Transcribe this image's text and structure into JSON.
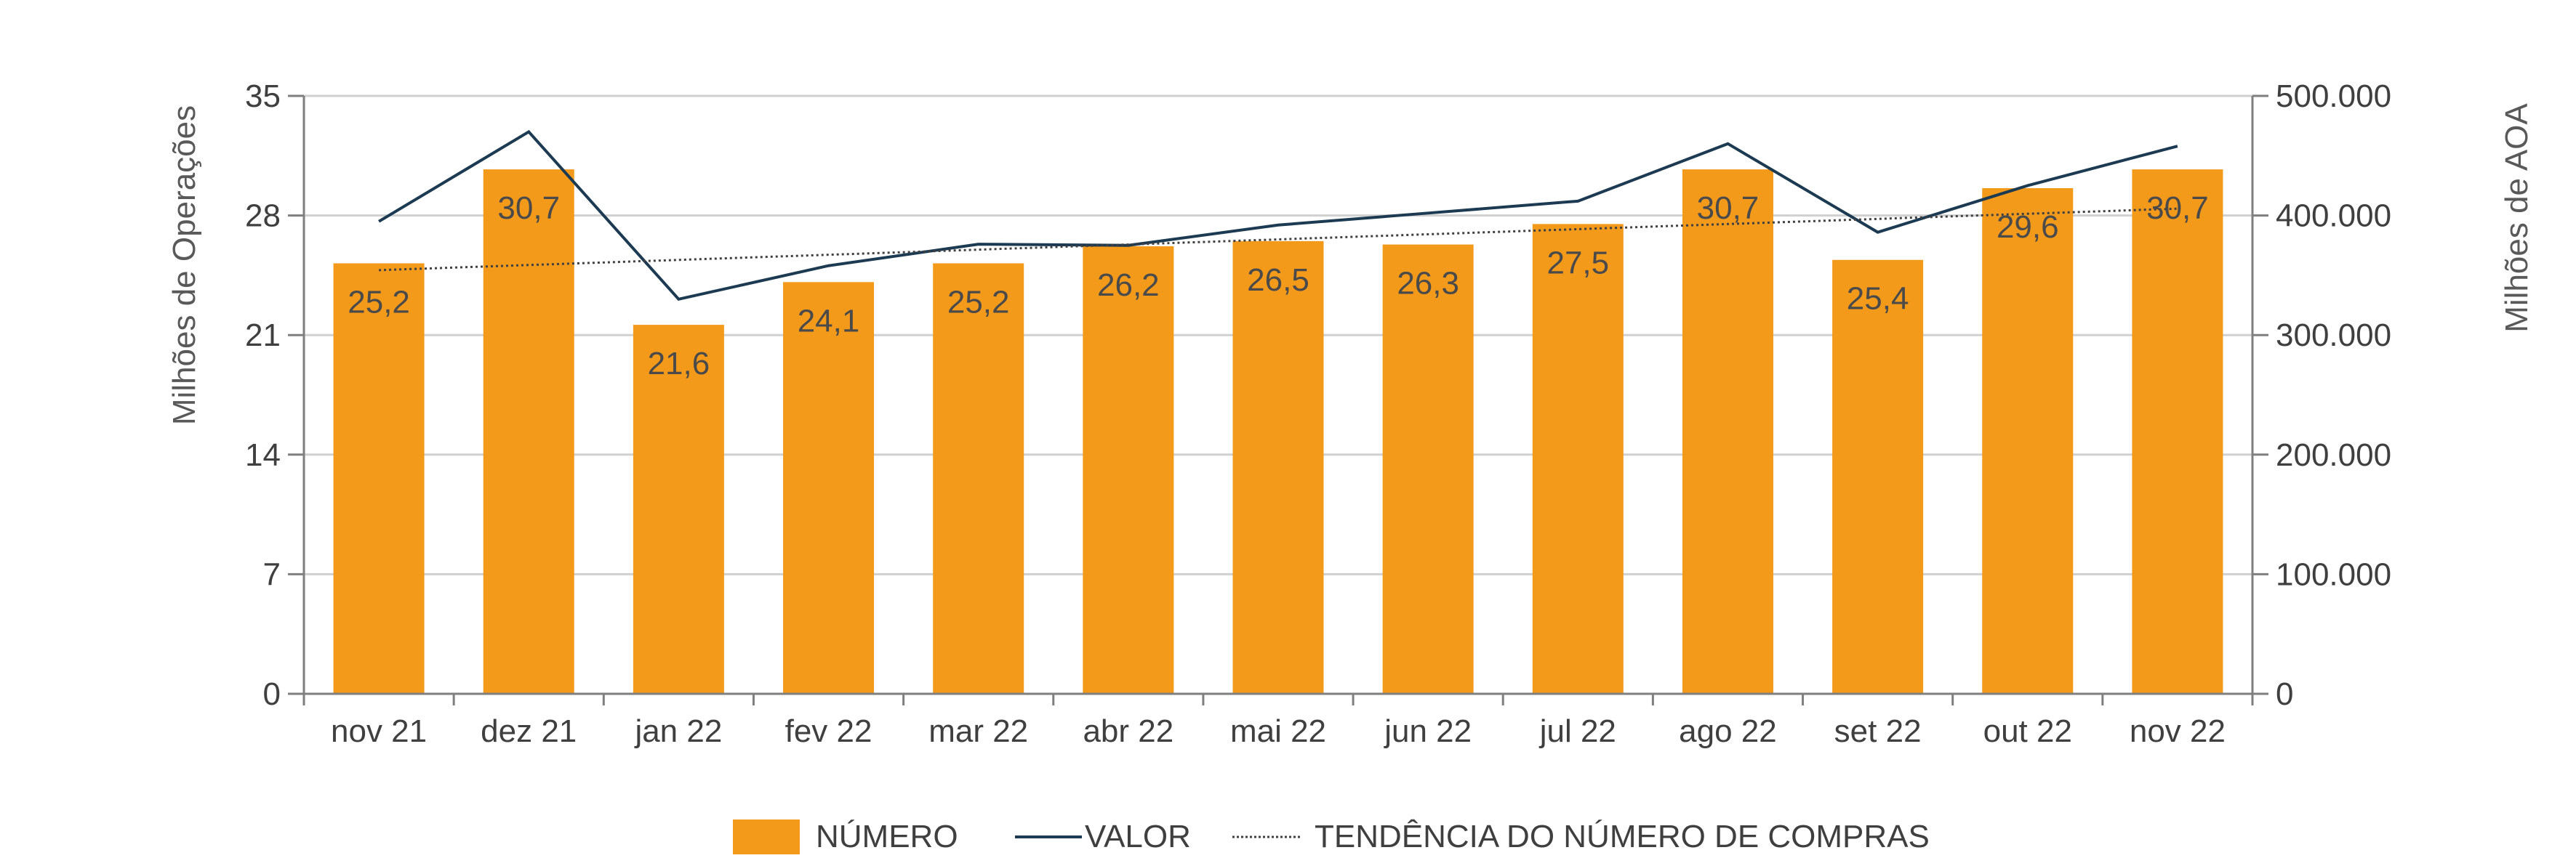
{
  "chart_data": {
    "type": "bar",
    "title": "",
    "categories": [
      "nov 21",
      "dez 21",
      "jan 22",
      "fev 22",
      "mar 22",
      "abr 22",
      "mai 22",
      "jun 22",
      "jul 22",
      "ago 22",
      "set 22",
      "out 22",
      "nov 22"
    ],
    "series": [
      {
        "name": "NÚMERO",
        "type": "bar",
        "axis": "left",
        "values": [
          25.2,
          30.7,
          21.6,
          24.1,
          25.2,
          26.2,
          26.5,
          26.3,
          27.5,
          30.7,
          25.4,
          29.6,
          30.7
        ]
      },
      {
        "name": "VALOR",
        "type": "line",
        "axis": "right",
        "values": [
          395000,
          470000,
          330000,
          358000,
          376000,
          375000,
          392000,
          402000,
          412000,
          460000,
          386000,
          425000,
          458000
        ]
      },
      {
        "name": "TENDÊNCIA DO NÚMERO DE COMPRAS",
        "type": "trendline",
        "axis": "left",
        "values": [
          24.8,
          25.1,
          25.4,
          25.7,
          26.0,
          26.3,
          26.6,
          26.9,
          27.2,
          27.5,
          27.8,
          28.1,
          28.4
        ]
      }
    ],
    "data_labels": [
      "25,2",
      "30,7",
      "21,6",
      "24,1",
      "25,2",
      "26,2",
      "26,5",
      "26,3",
      "27,5",
      "30,7",
      "25,4",
      "29,6",
      "30,7"
    ],
    "y_left": {
      "label": "Milhões de Operações",
      "ylim": [
        0,
        35
      ],
      "ticks": [
        "0",
        "7",
        "14",
        "21",
        "28",
        "35"
      ],
      "tick_values": [
        0,
        7,
        14,
        21,
        28,
        35
      ]
    },
    "y_right": {
      "label": "Milhões de AOA",
      "ylim": [
        0,
        500000
      ],
      "ticks": [
        "0",
        "100.000",
        "200.000",
        "300.000",
        "400.000",
        "500.000"
      ],
      "tick_values": [
        0,
        100000,
        200000,
        300000,
        400000,
        500000
      ]
    },
    "grid": true,
    "legend_position": "bottom-center"
  },
  "colors": {
    "bar": "#f39a1b",
    "line": "#1c3a52",
    "trend": "#404040",
    "grid": "#d0d0d0",
    "axis": "#7f7f7f"
  }
}
